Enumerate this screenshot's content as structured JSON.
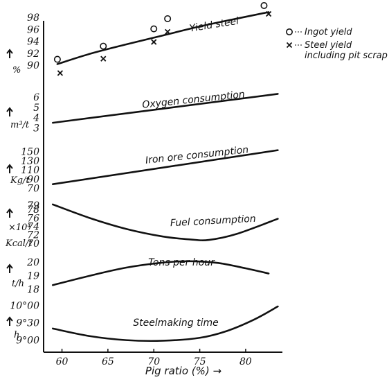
{
  "chart_data": {
    "type": "line",
    "xlabel": "Pig ratio (%) →",
    "x_ticks": [
      "60",
      "65",
      "70",
      "75",
      "80"
    ],
    "xlim": [
      58,
      84
    ],
    "panels": [
      {
        "id": "yield",
        "unit_label": "%",
        "ticks": [
          90,
          92,
          94,
          96,
          98
        ],
        "tick_labels": [
          "90",
          "92",
          "94",
          "96",
          "98"
        ],
        "ylim": [
          87,
          100
        ],
        "title": "Yield steel",
        "curve": {
          "x": [
            59.5,
            63,
            67,
            71,
            75,
            79,
            82.5
          ],
          "y": [
            90.2,
            91.9,
            93.5,
            95.0,
            96.5,
            97.8,
            98.9
          ]
        },
        "markers": [
          {
            "name": "Ingot yield",
            "symbol": "circle",
            "x": [
              59.5,
              64.5,
              70,
              71.5,
              82
            ],
            "y": [
              91.0,
              93.2,
              96.1,
              97.8,
              100.0
            ]
          },
          {
            "name": "Steel yield including pit scrap",
            "symbol": "cross",
            "x": [
              59.8,
              64.5,
              70,
              71.5,
              82.5
            ],
            "y": [
              88.7,
              91.1,
              93.9,
              95.6,
              98.6
            ]
          }
        ]
      },
      {
        "id": "oxygen",
        "unit_label": "m³/t",
        "ticks": [
          3,
          4,
          5,
          6
        ],
        "tick_labels": [
          "3",
          "4",
          "5",
          "6"
        ],
        "ylim": [
          2.5,
          6.8
        ],
        "title": "Oxygen consumption",
        "curve": {
          "x": [
            59,
            83.5
          ],
          "y": [
            3.5,
            6.3
          ]
        }
      },
      {
        "id": "iron-ore",
        "unit_label": "Kg/t",
        "ticks": [
          70,
          90,
          110,
          130,
          150
        ],
        "tick_labels": [
          "70",
          "90",
          "110",
          "130",
          "150"
        ],
        "ylim": [
          65,
          160
        ],
        "title": "Iron ore consumption",
        "curve": {
          "x": [
            59,
            83.5
          ],
          "y": [
            79,
            153
          ]
        }
      },
      {
        "id": "fuel",
        "unit_label": "×10⁴ Kcal/t",
        "ticks": [
          70,
          72,
          74,
          76,
          78,
          79
        ],
        "tick_labels": [
          "70",
          "72",
          "74",
          "76",
          "78",
          "79"
        ],
        "ylim": [
          69,
          80
        ],
        "title": "Fuel consumption",
        "curve": {
          "x": [
            59,
            63,
            67,
            71,
            74,
            76,
            79,
            83.5
          ],
          "y": [
            79.2,
            76.0,
            73.4,
            71.6,
            70.9,
            70.8,
            72.2,
            75.8
          ]
        }
      },
      {
        "id": "tons",
        "unit_label": "t/h",
        "ticks": [
          18,
          19,
          20
        ],
        "tick_labels": [
          "18",
          "19",
          "20"
        ],
        "ylim": [
          17.5,
          20.8
        ],
        "title": "Tons per hour",
        "curve": {
          "x": [
            59,
            63,
            67,
            71,
            74,
            77,
            80,
            82.5
          ],
          "y": [
            18.3,
            18.98,
            19.58,
            19.95,
            20.05,
            19.92,
            19.53,
            19.15
          ]
        }
      },
      {
        "id": "time",
        "unit_label": "h",
        "ticks": [
          540,
          570,
          600
        ],
        "tick_labels": [
          "9°00",
          "9°30",
          "10°00"
        ],
        "ylim": [
          530,
          610
        ],
        "title": "Steelmaking time",
        "curve": {
          "x": [
            59,
            63,
            67,
            71,
            75,
            78,
            81,
            83.5
          ],
          "y": [
            560,
            547,
            540,
            539,
            544,
            556,
            576,
            598
          ]
        }
      }
    ],
    "legend": {
      "placement": "top-right",
      "entries": [
        {
          "symbol": "circle",
          "lines": [
            "Ingot yield"
          ]
        },
        {
          "symbol": "cross",
          "lines": [
            "Steel yield",
            "including pit scrap"
          ]
        }
      ]
    }
  }
}
